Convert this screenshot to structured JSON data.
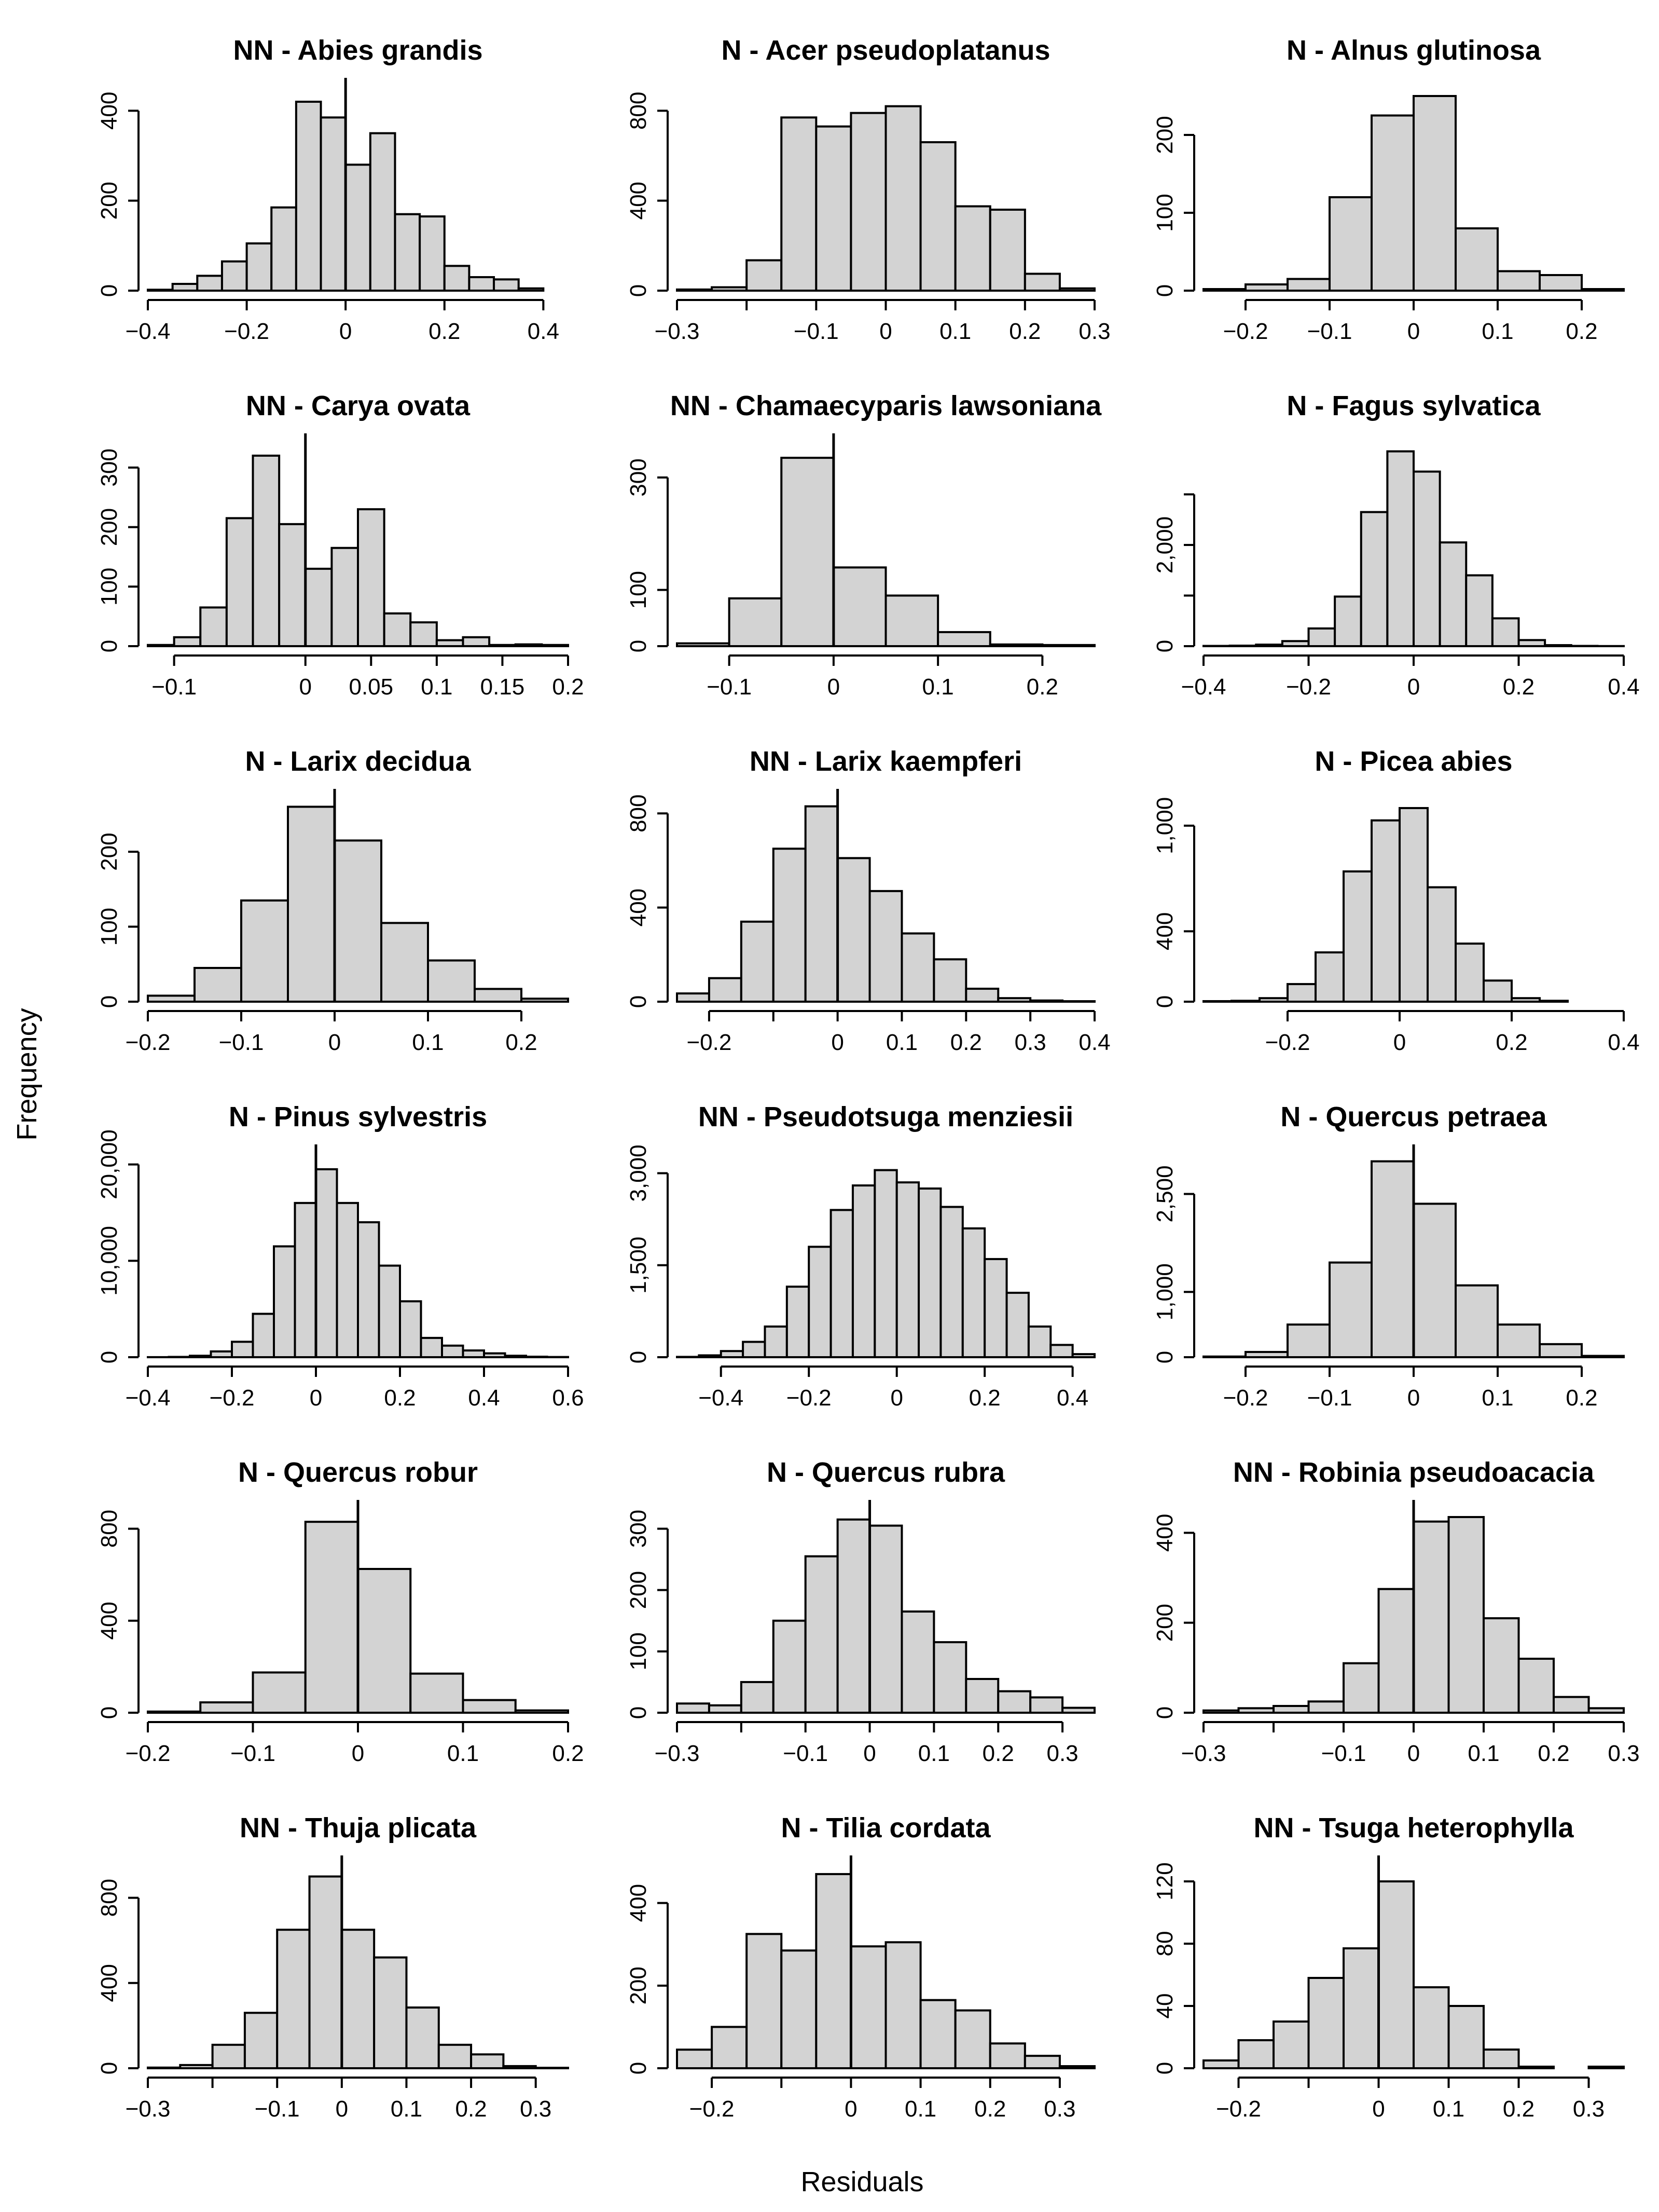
{
  "figure": {
    "ylabel": "Frequency",
    "xlabel": "Residuals"
  },
  "chart_data": [
    {
      "type": "bar",
      "title": "NN - Abies grandis",
      "bin_edges": [
        -0.4,
        -0.35,
        -0.3,
        -0.25,
        -0.2,
        -0.15,
        -0.1,
        -0.05,
        0,
        0.05,
        0.1,
        0.15,
        0.2,
        0.25,
        0.3,
        0.35,
        0.4
      ],
      "counts": [
        2,
        15,
        33,
        65,
        105,
        185,
        420,
        385,
        280,
        350,
        170,
        165,
        55,
        30,
        25,
        5
      ],
      "xlim": [
        -0.4,
        0.45
      ],
      "ylim": [
        0,
        450
      ],
      "xticks": [
        -0.4,
        -0.2,
        0,
        0.2,
        0.4
      ],
      "xtick_labels": [
        "−0.4",
        "−0.2",
        "0",
        "0.2",
        "0.4"
      ],
      "yticks": [
        0,
        200,
        400
      ],
      "ytick_labels": [
        "0",
        "200",
        "400"
      ],
      "zero_line": true
    },
    {
      "type": "bar",
      "title": "N - Acer pseudoplatanus",
      "bin_edges": [
        -0.3,
        -0.25,
        -0.2,
        -0.15,
        -0.1,
        -0.05,
        0,
        0.05,
        0.1,
        0.15,
        0.2,
        0.25,
        0.3
      ],
      "counts": [
        5,
        15,
        135,
        770,
        730,
        790,
        820,
        660,
        375,
        360,
        75,
        10
      ],
      "xlim": [
        -0.3,
        0.3
      ],
      "ylim": [
        0,
        900
      ],
      "xticks": [
        -0.3,
        -0.2,
        -0.1,
        0,
        0.1,
        0.2,
        0.3
      ],
      "xtick_labels": [
        "−0.3",
        "",
        "−0.1",
        "0",
        "0.1",
        "0.2",
        "0.3"
      ],
      "yticks": [
        0,
        400,
        800
      ],
      "ytick_labels": [
        "0",
        "400",
        "800"
      ],
      "zero_line": false
    },
    {
      "type": "bar",
      "title": "N - Alnus glutinosa",
      "bin_edges": [
        -0.25,
        -0.2,
        -0.15,
        -0.1,
        -0.05,
        0,
        0.05,
        0.1,
        0.15,
        0.2,
        0.25
      ],
      "counts": [
        2,
        8,
        15,
        120,
        225,
        250,
        80,
        25,
        20,
        2
      ],
      "xlim": [
        -0.25,
        0.25
      ],
      "ylim": [
        0,
        260
      ],
      "xticks": [
        -0.2,
        -0.1,
        0,
        0.1,
        0.2
      ],
      "xtick_labels": [
        "−0.2",
        "−0.1",
        "0",
        "0.1",
        "0.2"
      ],
      "yticks": [
        0,
        100,
        200
      ],
      "ytick_labels": [
        "0",
        "100",
        "200"
      ],
      "zero_line": false
    },
    {
      "type": "bar",
      "title": "NN - Carya ovata",
      "bin_edges": [
        -0.12,
        -0.1,
        -0.08,
        -0.06,
        -0.04,
        -0.02,
        0,
        0.02,
        0.04,
        0.06,
        0.08,
        0.1,
        0.12,
        0.14,
        0.16,
        0.18,
        0.2
      ],
      "counts": [
        2,
        15,
        65,
        215,
        320,
        205,
        130,
        165,
        230,
        55,
        40,
        10,
        15,
        2,
        3,
        2
      ],
      "xlim": [
        -0.12,
        0.2
      ],
      "ylim": [
        0,
        340
      ],
      "xticks": [
        -0.1,
        0,
        0.05,
        0.1,
        0.15,
        0.2
      ],
      "xtick_labels": [
        "−0.1",
        "0",
        "0.05",
        "0.1",
        "0.15",
        "0.2"
      ],
      "yticks": [
        0,
        100,
        200,
        300
      ],
      "ytick_labels": [
        "0",
        "100",
        "200",
        "300"
      ],
      "zero_line": true
    },
    {
      "type": "bar",
      "title": "NN - Chamaecyparis lawsoniana",
      "bin_edges": [
        -0.15,
        -0.1,
        -0.05,
        0,
        0.05,
        0.1,
        0.15,
        0.2,
        0.25
      ],
      "counts": [
        5,
        85,
        335,
        140,
        90,
        25,
        3,
        2
      ],
      "xlim": [
        -0.15,
        0.25
      ],
      "ylim": [
        0,
        360
      ],
      "xticks": [
        -0.1,
        0,
        0.1,
        0.2
      ],
      "xtick_labels": [
        "−0.1",
        "0",
        "0.1",
        "0.2"
      ],
      "yticks": [
        0,
        100,
        300
      ],
      "ytick_labels": [
        "0",
        "100",
        "300"
      ],
      "zero_line": true
    },
    {
      "type": "bar",
      "title": "N - Fagus sylvatica",
      "bin_edges": [
        -0.4,
        -0.35,
        -0.3,
        -0.25,
        -0.2,
        -0.15,
        -0.1,
        -0.05,
        0,
        0.05,
        0.1,
        0.15,
        0.2,
        0.25,
        0.3,
        0.35,
        0.4
      ],
      "counts": [
        5,
        10,
        30,
        100,
        350,
        980,
        2650,
        3850,
        3450,
        2050,
        1400,
        550,
        120,
        20,
        5,
        2
      ],
      "xlim": [
        -0.4,
        0.4
      ],
      "ylim": [
        0,
        4000
      ],
      "xticks": [
        -0.4,
        -0.2,
        0,
        0.2,
        0.4
      ],
      "xtick_labels": [
        "−0.4",
        "−0.2",
        "0",
        "0.2",
        "0.4"
      ],
      "yticks": [
        0,
        1000,
        2000,
        3000
      ],
      "ytick_labels": [
        "0",
        "",
        "2,000",
        ""
      ],
      "zero_line": false
    },
    {
      "type": "bar",
      "title": "N - Larix decidua",
      "bin_edges": [
        -0.2,
        -0.15,
        -0.1,
        -0.05,
        0,
        0.05,
        0.1,
        0.15,
        0.2,
        0.25
      ],
      "counts": [
        8,
        45,
        135,
        260,
        215,
        105,
        55,
        17,
        4
      ],
      "xlim": [
        -0.2,
        0.25
      ],
      "ylim": [
        0,
        270
      ],
      "xticks": [
        -0.2,
        -0.1,
        0,
        0.1,
        0.2
      ],
      "xtick_labels": [
        "−0.2",
        "−0.1",
        "0",
        "0.1",
        "0.2"
      ],
      "yticks": [
        0,
        100,
        200
      ],
      "ytick_labels": [
        "0",
        "100",
        "200"
      ],
      "zero_line": true
    },
    {
      "type": "bar",
      "title": "NN - Larix kaempferi",
      "bin_edges": [
        -0.25,
        -0.2,
        -0.15,
        -0.1,
        -0.05,
        0,
        0.05,
        0.1,
        0.15,
        0.2,
        0.25,
        0.3,
        0.35,
        0.4
      ],
      "counts": [
        35,
        100,
        340,
        650,
        830,
        610,
        470,
        290,
        180,
        55,
        15,
        5,
        2
      ],
      "xlim": [
        -0.25,
        0.4
      ],
      "ylim": [
        0,
        860
      ],
      "xticks": [
        -0.2,
        -0.1,
        0,
        0.1,
        0.2,
        0.3,
        0.4
      ],
      "xtick_labels": [
        "−0.2",
        "",
        "0",
        "0.1",
        "0.2",
        "0.3",
        "0.4"
      ],
      "yticks": [
        0,
        400,
        800
      ],
      "ytick_labels": [
        "0",
        "400",
        "800"
      ],
      "zero_line": true
    },
    {
      "type": "bar",
      "title": "N - Picea abies",
      "bin_edges": [
        -0.35,
        -0.3,
        -0.25,
        -0.2,
        -0.15,
        -0.1,
        -0.05,
        0,
        0.05,
        0.1,
        0.15,
        0.2,
        0.25,
        0.3
      ],
      "counts": [
        3,
        5,
        20,
        100,
        280,
        740,
        1030,
        1100,
        650,
        330,
        120,
        20,
        5
      ],
      "xlim": [
        -0.35,
        0.4
      ],
      "ylim": [
        0,
        1150
      ],
      "xticks": [
        -0.2,
        0,
        0.2,
        0.4
      ],
      "xtick_labels": [
        "−0.2",
        "0",
        "0.2",
        "0.4"
      ],
      "yticks": [
        0,
        400,
        1000
      ],
      "ytick_labels": [
        "0",
        "400",
        "1,000"
      ],
      "zero_line": false
    },
    {
      "type": "bar",
      "title": "N - Pinus sylvestris",
      "bin_edges": [
        -0.4,
        -0.35,
        -0.3,
        -0.25,
        -0.2,
        -0.15,
        -0.1,
        -0.05,
        0,
        0.05,
        0.1,
        0.15,
        0.2,
        0.25,
        0.3,
        0.35,
        0.4,
        0.45,
        0.5,
        0.55,
        0.6
      ],
      "counts": [
        5,
        30,
        150,
        600,
        1600,
        4500,
        11500,
        16000,
        19500,
        16000,
        14000,
        9500,
        5800,
        2000,
        1200,
        700,
        400,
        150,
        50,
        20
      ],
      "xlim": [
        -0.4,
        0.6
      ],
      "ylim": [
        0,
        21000
      ],
      "xticks": [
        -0.4,
        -0.2,
        0,
        0.2,
        0.4,
        0.6
      ],
      "xtick_labels": [
        "−0.4",
        "−0.2",
        "0",
        "0.2",
        "0.4",
        "0.6"
      ],
      "yticks": [
        0,
        10000,
        20000
      ],
      "ytick_labels": [
        "0",
        "10,000",
        "20,000"
      ],
      "zero_line": true
    },
    {
      "type": "bar",
      "title": "NN - Pseudotsuga menziesii",
      "bin_edges": [
        -0.5,
        -0.45,
        -0.4,
        -0.35,
        -0.3,
        -0.25,
        -0.2,
        -0.15,
        -0.1,
        -0.05,
        0,
        0.05,
        0.1,
        0.15,
        0.2,
        0.25,
        0.3,
        0.35,
        0.4,
        0.45
      ],
      "counts": [
        5,
        30,
        100,
        250,
        500,
        1150,
        1800,
        2400,
        2800,
        3050,
        2850,
        2750,
        2450,
        2100,
        1600,
        1050,
        500,
        200,
        50
      ],
      "xlim": [
        -0.5,
        0.45
      ],
      "ylim": [
        0,
        3300
      ],
      "xticks": [
        -0.4,
        -0.2,
        0,
        0.2,
        0.4
      ],
      "xtick_labels": [
        "−0.4",
        "−0.2",
        "0",
        "0.2",
        "0.4"
      ],
      "yticks": [
        0,
        1500,
        3000
      ],
      "ytick_labels": [
        "0",
        "1,500",
        "3,000"
      ],
      "zero_line": false
    },
    {
      "type": "bar",
      "title": "N - Quercus petraea",
      "bin_edges": [
        -0.25,
        -0.2,
        -0.15,
        -0.1,
        -0.05,
        0,
        0.05,
        0.1,
        0.15,
        0.2,
        0.25
      ],
      "counts": [
        10,
        80,
        500,
        1450,
        3000,
        2350,
        1100,
        500,
        200,
        20
      ],
      "xlim": [
        -0.25,
        0.25
      ],
      "ylim": [
        0,
        3100
      ],
      "xticks": [
        -0.2,
        -0.1,
        0,
        0.1,
        0.2
      ],
      "xtick_labels": [
        "−0.2",
        "−0.1",
        "0",
        "0.1",
        "0.2"
      ],
      "yticks": [
        0,
        1000,
        2500
      ],
      "ytick_labels": [
        "0",
        "1,000",
        "2,500"
      ],
      "zero_line": true
    },
    {
      "type": "bar",
      "title": "N - Quercus robur",
      "bin_edges": [
        -0.2,
        -0.15,
        -0.1,
        -0.05,
        0,
        0.05,
        0.1,
        0.15,
        0.2
      ],
      "counts": [
        5,
        45,
        175,
        830,
        625,
        170,
        55,
        10
      ],
      "xlim": [
        -0.2,
        0.2
      ],
      "ylim": [
        0,
        880
      ],
      "xticks": [
        -0.2,
        -0.1,
        0,
        0.1,
        0.2
      ],
      "xtick_labels": [
        "−0.2",
        "−0.1",
        "0",
        "0.1",
        "0.2"
      ],
      "yticks": [
        0,
        400,
        800
      ],
      "ytick_labels": [
        "0",
        "400",
        "800"
      ],
      "zero_line": true
    },
    {
      "type": "bar",
      "title": "N - Quercus rubra",
      "bin_edges": [
        -0.3,
        -0.25,
        -0.2,
        -0.15,
        -0.1,
        -0.05,
        0,
        0.05,
        0.1,
        0.15,
        0.2,
        0.25,
        0.3,
        0.35
      ],
      "counts": [
        15,
        12,
        50,
        150,
        255,
        315,
        305,
        165,
        115,
        55,
        35,
        25,
        8
      ],
      "xlim": [
        -0.3,
        0.35
      ],
      "ylim": [
        0,
        330
      ],
      "xticks": [
        -0.3,
        -0.2,
        -0.1,
        0,
        0.1,
        0.2,
        0.3
      ],
      "xtick_labels": [
        "−0.3",
        "",
        "−0.1",
        "0",
        "0.1",
        "0.2",
        "0.3"
      ],
      "yticks": [
        0,
        100,
        200,
        300
      ],
      "ytick_labels": [
        "0",
        "100",
        "200",
        "300"
      ],
      "zero_line": true
    },
    {
      "type": "bar",
      "title": "NN - Robinia pseudoacacia",
      "bin_edges": [
        -0.3,
        -0.25,
        -0.2,
        -0.15,
        -0.1,
        -0.05,
        0,
        0.05,
        0.1,
        0.15,
        0.2,
        0.25,
        0.3
      ],
      "counts": [
        5,
        10,
        15,
        25,
        110,
        275,
        425,
        435,
        210,
        120,
        35,
        10
      ],
      "xlim": [
        -0.3,
        0.3
      ],
      "ylim": [
        0,
        450
      ],
      "xticks": [
        -0.3,
        -0.2,
        -0.1,
        0,
        0.1,
        0.2,
        0.3
      ],
      "xtick_labels": [
        "−0.3",
        "",
        "−0.1",
        "0",
        "0.1",
        "0.2",
        "0.3"
      ],
      "yticks": [
        0,
        200,
        400
      ],
      "ytick_labels": [
        "0",
        "200",
        "400"
      ],
      "zero_line": true
    },
    {
      "type": "bar",
      "title": "NN - Thuja plicata",
      "bin_edges": [
        -0.3,
        -0.25,
        -0.2,
        -0.15,
        -0.1,
        -0.05,
        0,
        0.05,
        0.1,
        0.15,
        0.2,
        0.25,
        0.3,
        0.35
      ],
      "counts": [
        3,
        15,
        110,
        260,
        650,
        900,
        650,
        520,
        285,
        110,
        65,
        10,
        2
      ],
      "xlim": [
        -0.3,
        0.35
      ],
      "ylim": [
        0,
        950
      ],
      "xticks": [
        -0.3,
        -0.2,
        -0.1,
        0,
        0.1,
        0.2,
        0.3
      ],
      "xtick_labels": [
        "−0.3",
        "",
        "−0.1",
        "0",
        "0.1",
        "0.2",
        "0.3"
      ],
      "yticks": [
        0,
        400,
        800
      ],
      "ytick_labels": [
        "0",
        "400",
        "800"
      ],
      "zero_line": true
    },
    {
      "type": "bar",
      "title": "N - Tilia cordata",
      "bin_edges": [
        -0.25,
        -0.2,
        -0.15,
        -0.1,
        -0.05,
        0,
        0.05,
        0.1,
        0.15,
        0.2,
        0.25,
        0.3,
        0.35
      ],
      "counts": [
        45,
        100,
        325,
        285,
        470,
        295,
        305,
        165,
        140,
        60,
        30,
        5
      ],
      "xlim": [
        -0.25,
        0.35
      ],
      "ylim": [
        0,
        490
      ],
      "xticks": [
        -0.2,
        -0.1,
        0,
        0.1,
        0.2,
        0.3
      ],
      "xtick_labels": [
        "−0.2",
        "",
        "0",
        "0.1",
        "0.2",
        "0.3"
      ],
      "yticks": [
        0,
        200,
        400
      ],
      "ytick_labels": [
        "0",
        "200",
        "400"
      ],
      "zero_line": true
    },
    {
      "type": "bar",
      "title": "NN - Tsuga heterophylla",
      "bin_edges": [
        -0.25,
        -0.2,
        -0.15,
        -0.1,
        -0.05,
        0,
        0.05,
        0.1,
        0.15,
        0.2,
        0.25,
        0.3,
        0.35
      ],
      "counts": [
        5,
        18,
        30,
        58,
        77,
        120,
        52,
        40,
        12,
        1,
        0,
        1
      ],
      "xlim": [
        -0.25,
        0.35
      ],
      "ylim": [
        0,
        130
      ],
      "xticks": [
        -0.2,
        -0.1,
        0,
        0.1,
        0.2,
        0.3
      ],
      "xtick_labels": [
        "−0.2",
        "",
        "0",
        "0.1",
        "0.2",
        "0.3"
      ],
      "yticks": [
        0,
        40,
        80,
        120
      ],
      "ytick_labels": [
        "0",
        "40",
        "80",
        "120"
      ],
      "zero_line": true
    }
  ]
}
